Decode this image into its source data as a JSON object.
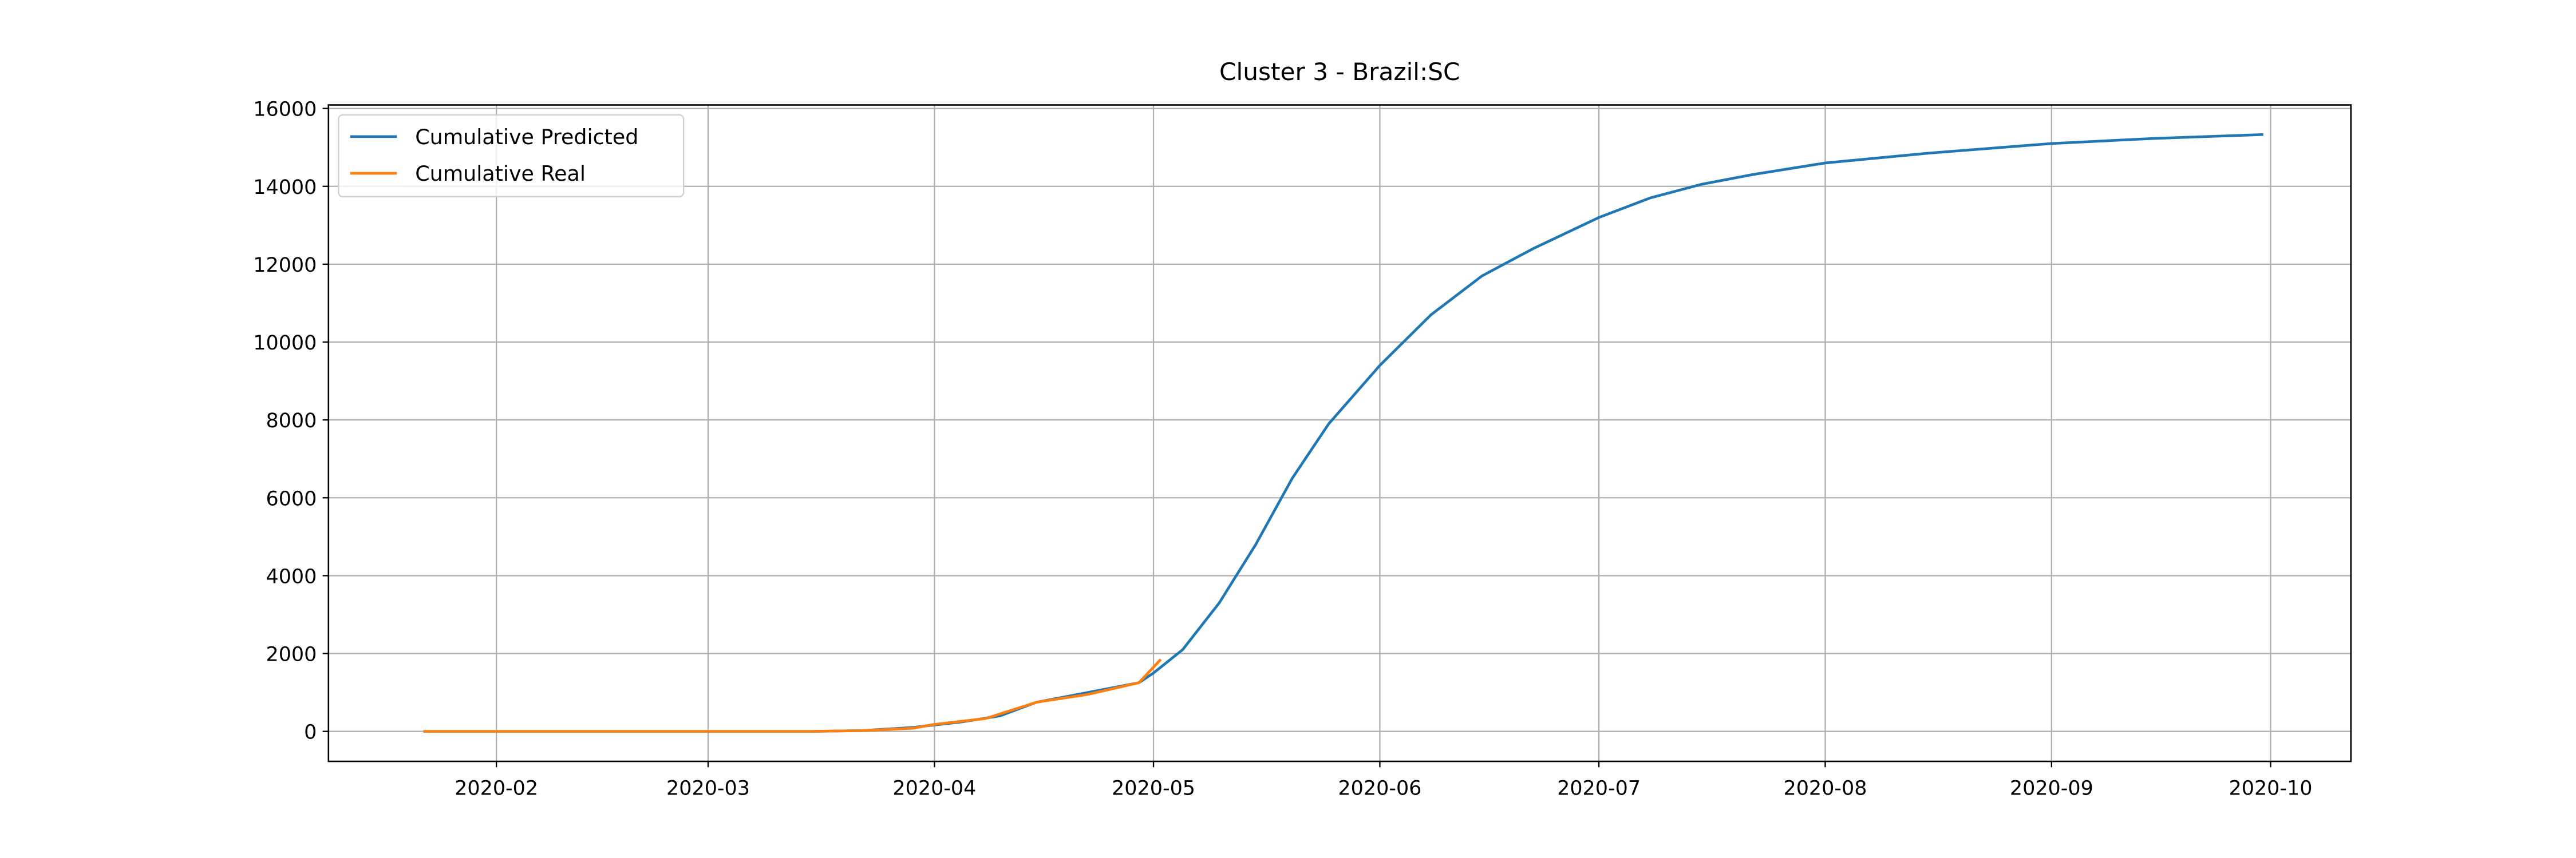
{
  "chart_data": {
    "type": "line",
    "title": "Cluster 3 - Brazil:SC",
    "grid": true,
    "legend": "upper left",
    "xlim": [
      "2020-01-09",
      "2020-10-12"
    ],
    "ylim": [
      -770,
      16090
    ],
    "xticks": [
      {
        "value": "2020-02-01",
        "label": "2020-02"
      },
      {
        "value": "2020-03-01",
        "label": "2020-03"
      },
      {
        "value": "2020-04-01",
        "label": "2020-04"
      },
      {
        "value": "2020-05-01",
        "label": "2020-05"
      },
      {
        "value": "2020-06-01",
        "label": "2020-06"
      },
      {
        "value": "2020-07-01",
        "label": "2020-07"
      },
      {
        "value": "2020-08-01",
        "label": "2020-08"
      },
      {
        "value": "2020-09-01",
        "label": "2020-09"
      },
      {
        "value": "2020-10-01",
        "label": "2020-10"
      }
    ],
    "yticks": [
      0,
      2000,
      4000,
      6000,
      8000,
      10000,
      12000,
      14000,
      16000
    ],
    "series": [
      {
        "name": "Cumulative Predicted",
        "color": "#1f77b4",
        "x": [
          "2020-01-22",
          "2020-02-15",
          "2020-03-15",
          "2020-03-22",
          "2020-03-29",
          "2020-04-05",
          "2020-04-10",
          "2020-04-15",
          "2020-04-22",
          "2020-04-29",
          "2020-05-01",
          "2020-05-05",
          "2020-05-10",
          "2020-05-15",
          "2020-05-20",
          "2020-05-25",
          "2020-06-01",
          "2020-06-08",
          "2020-06-15",
          "2020-06-22",
          "2020-07-01",
          "2020-07-08",
          "2020-07-15",
          "2020-07-22",
          "2020-08-01",
          "2020-08-15",
          "2020-09-01",
          "2020-09-15",
          "2020-09-30"
        ],
        "values": [
          0,
          0,
          0,
          20,
          100,
          250,
          400,
          750,
          1000,
          1250,
          1500,
          2100,
          3300,
          4800,
          6500,
          7900,
          9400,
          10700,
          11700,
          12400,
          13200,
          13700,
          14050,
          14300,
          14600,
          14850,
          15100,
          15230,
          15330
        ]
      },
      {
        "name": "Cumulative Real",
        "color": "#ff7f0e",
        "x": [
          "2020-01-22",
          "2020-02-15",
          "2020-03-15",
          "2020-03-22",
          "2020-03-29",
          "2020-04-01",
          "2020-04-08",
          "2020-04-15",
          "2020-04-22",
          "2020-04-29",
          "2020-05-02"
        ],
        "values": [
          0,
          0,
          0,
          20,
          80,
          180,
          330,
          750,
          950,
          1250,
          1850
        ]
      }
    ]
  }
}
